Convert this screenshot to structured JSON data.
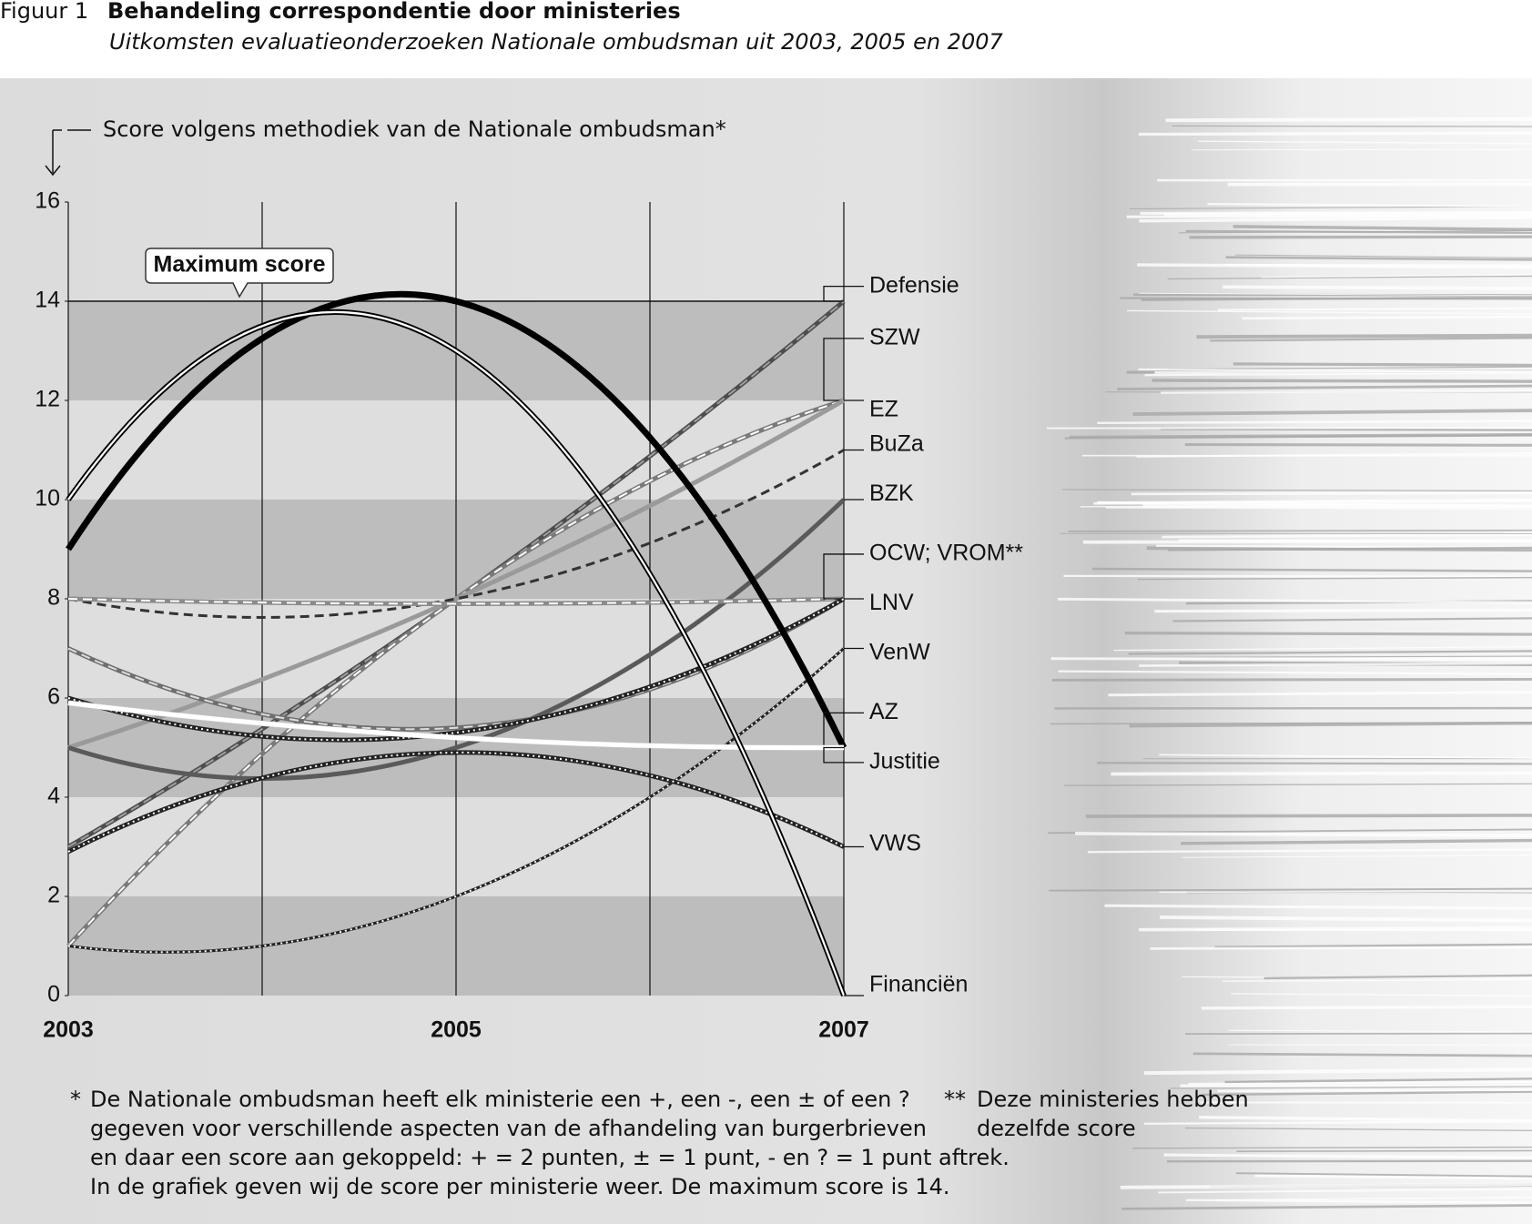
{
  "chart_data": {
    "type": "line",
    "figure_label": "Figuur 1",
    "title": "Behandeling correspondentie door ministeries",
    "subtitle": "Uitkomsten evaluatieonderzoeken Nationale ombudsman uit 2003, 2005 en 2007",
    "y_label": "Score volgens methodiek van de Nationale ombudsman*",
    "x": [
      2003,
      2005,
      2007
    ],
    "xlim": [
      2003,
      2007
    ],
    "xticks": [
      2003,
      2005,
      2007
    ],
    "ylim": [
      0,
      16
    ],
    "yticks": [
      0,
      2,
      4,
      6,
      8,
      10,
      12,
      14,
      16
    ],
    "max_score": 14,
    "max_score_label": "Maximum score",
    "series": [
      {
        "name": "Defensie",
        "color": "#4d4d4d",
        "width": 5,
        "stripe": "#a0a0a0",
        "dash": "dashed",
        "values": [
          3,
          8,
          14
        ]
      },
      {
        "name": "SZW",
        "color": "#7a7a7a",
        "width": 5,
        "stripe": "#ffffff",
        "dash": "dashed",
        "values": [
          1,
          8,
          12
        ]
      },
      {
        "name": "EZ",
        "color": "#9a9a9a",
        "width": 5,
        "values": [
          5,
          8,
          12
        ]
      },
      {
        "name": "BuZa",
        "color": "#333333",
        "width": 3,
        "dash": "dashed",
        "values": [
          8,
          8,
          11
        ]
      },
      {
        "name": "BZK",
        "color": "#5a5a5a",
        "width": 5,
        "values": [
          5,
          5,
          10
        ]
      },
      {
        "name": "OCW; VROM**",
        "color": "#8a8a8a",
        "width": 5,
        "stripe": "#ffffff",
        "dash": "dashed",
        "values": [
          8,
          7.9,
          8
        ]
      },
      {
        "name": "LNV",
        "color": "#6e6e6e",
        "width": 5,
        "stripe": "#dddddd",
        "dash": "dashed",
        "values": [
          7,
          5.4,
          8
        ]
      },
      {
        "color": "#222222",
        "width": 5,
        "stripe": "#ffffff",
        "dash": "dotted",
        "values": [
          6,
          5.3,
          8
        ]
      },
      {
        "name": "VenW",
        "color": "#222222",
        "width": 3,
        "stripe": "#ffffff",
        "dash": "dotted",
        "values": [
          1,
          2,
          7
        ]
      },
      {
        "name": "AZ",
        "color": "#000000",
        "width": 7,
        "values": [
          9,
          14,
          5
        ]
      },
      {
        "name": "Justitie",
        "color": "#ffffff",
        "width": 5,
        "values": [
          5.9,
          5.2,
          5
        ]
      },
      {
        "name": "VWS",
        "color": "#222222",
        "width": 5,
        "stripe": "#ffffff",
        "dash": "dotted",
        "values": [
          2.9,
          4.9,
          3
        ]
      },
      {
        "name": "Financiën",
        "color": "#000000",
        "width": 5,
        "stripe": "#ffffff",
        "values": [
          10,
          13,
          0
        ]
      }
    ],
    "footnote_marker": "*",
    "footnote": [
      "De Nationale ombudsman heeft elk ministerie een +, een -, een ± of een ?",
      "gegeven voor verschillende aspecten van de afhandeling van burgerbrieven",
      "en daar een score aan gekoppeld: + = 2 punten, ± = 1 punt, - en ? = 1 punt aftrek.",
      "In de grafiek geven wij de score per ministerie weer. De maximum score is 14."
    ],
    "footnote2_marker": "**",
    "footnote2": [
      "Deze ministeries hebben",
      "dezelfde score"
    ]
  }
}
